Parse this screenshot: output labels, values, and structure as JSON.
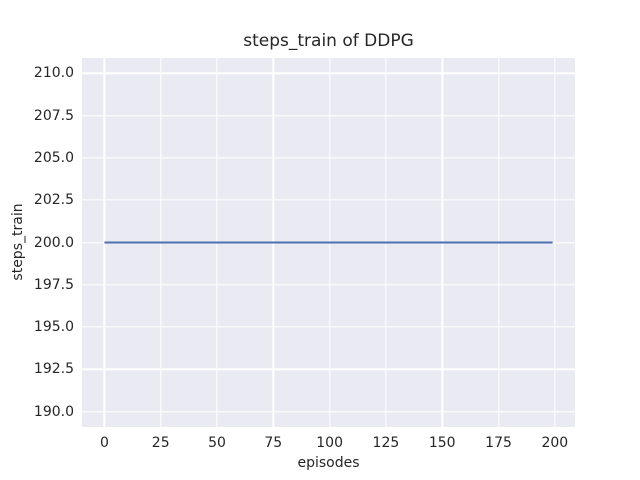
{
  "colors": {
    "figure_bg": "#ffffff",
    "plot_bg": "#eaeaf2",
    "grid": "#ffffff",
    "text": "#262626",
    "line": "#4c72b0"
  },
  "chart_data": {
    "type": "line",
    "title": "steps_train of DDPG",
    "xlabel": "episodes",
    "ylabel": "steps_train",
    "xlim": [
      -9.95,
      208.95
    ],
    "ylim": [
      189.1,
      210.9
    ],
    "xticks": [
      0,
      25,
      50,
      75,
      100,
      125,
      150,
      175,
      200
    ],
    "xticklabels": [
      "0",
      "25",
      "50",
      "75",
      "100",
      "125",
      "150",
      "175",
      "200"
    ],
    "yticks": [
      190.0,
      192.5,
      195.0,
      197.5,
      200.0,
      202.5,
      205.0,
      207.5,
      210.0
    ],
    "yticklabels": [
      "190.0",
      "192.5",
      "195.0",
      "197.5",
      "200.0",
      "202.5",
      "205.0",
      "207.5",
      "210.0"
    ],
    "grid": true,
    "legend": null,
    "series": [
      {
        "name": "steps_train",
        "color": "#4c72b0",
        "x": [
          0,
          199
        ],
        "y": [
          200,
          200
        ]
      }
    ]
  }
}
